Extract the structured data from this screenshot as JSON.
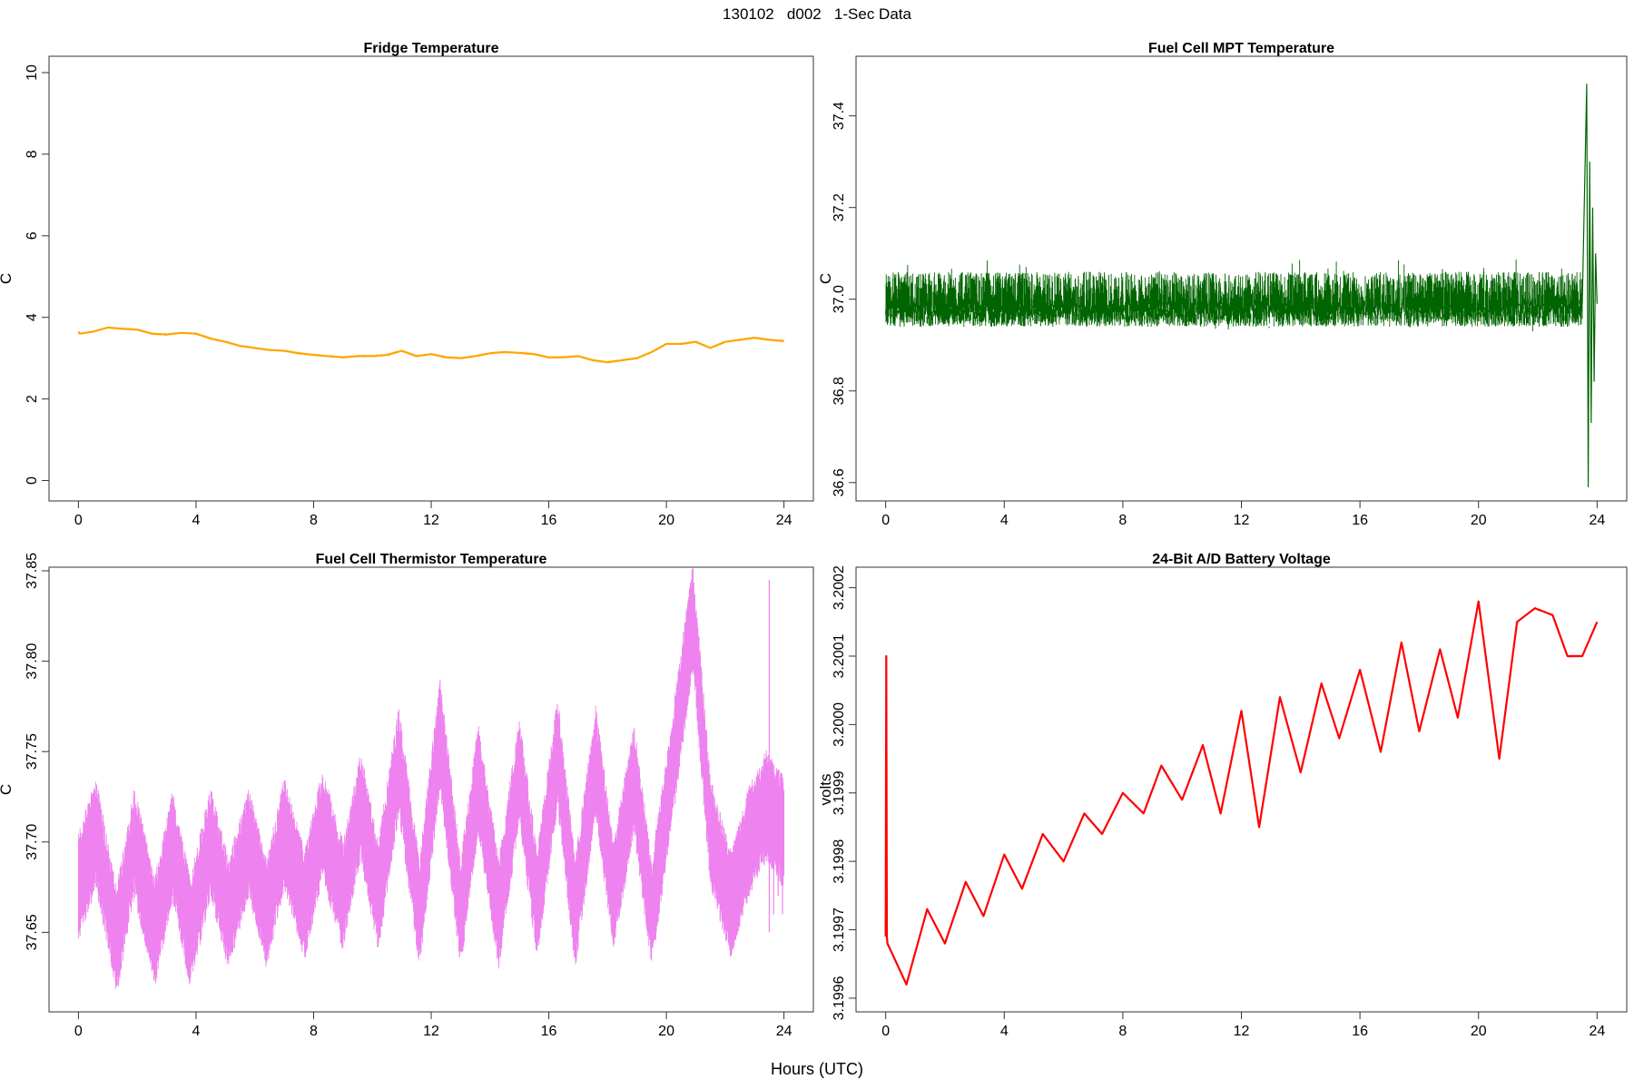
{
  "figure": {
    "title": "130102   d002   1-Sec Data",
    "xlabel": "Hours (UTC)"
  },
  "chart_data": [
    {
      "type": "line",
      "title": "Fridge Temperature",
      "ylabel": "C",
      "color": "#FFA500",
      "xlim": [
        -1,
        25
      ],
      "ylim": [
        -0.5,
        10.4
      ],
      "xticks": [
        0,
        4,
        8,
        12,
        16,
        20,
        24
      ],
      "yticks": [
        0,
        2,
        4,
        6,
        8,
        10
      ],
      "ytick_labels": [
        "0",
        "2",
        "4",
        "6",
        "8",
        "10"
      ],
      "style": "smooth",
      "x": [
        0,
        0.05,
        0.5,
        1,
        1.5,
        2,
        2.5,
        3,
        3.5,
        4,
        4.5,
        5,
        5.5,
        6,
        6.5,
        7,
        7.5,
        8,
        8.5,
        9,
        9.5,
        10,
        10.5,
        11,
        11.5,
        12,
        12.5,
        13,
        13.5,
        14,
        14.5,
        15,
        15.5,
        16,
        16.5,
        17,
        17.5,
        18,
        18.5,
        19,
        19.5,
        20,
        20.5,
        21,
        21.5,
        22,
        22.5,
        23,
        23.5,
        24
      ],
      "y": [
        3.65,
        3.6,
        3.65,
        3.75,
        3.72,
        3.7,
        3.6,
        3.58,
        3.62,
        3.6,
        3.48,
        3.4,
        3.3,
        3.25,
        3.2,
        3.18,
        3.12,
        3.08,
        3.05,
        3.02,
        3.05,
        3.05,
        3.08,
        3.18,
        3.05,
        3.1,
        3.02,
        3.0,
        3.05,
        3.12,
        3.15,
        3.13,
        3.1,
        3.02,
        3.02,
        3.05,
        2.95,
        2.9,
        2.95,
        3.0,
        3.15,
        3.35,
        3.35,
        3.4,
        3.25,
        3.4,
        3.45,
        3.5,
        3.45,
        3.42
      ]
    },
    {
      "type": "line",
      "title": "Fuel Cell MPT Temperature",
      "ylabel": "C",
      "color": "#006400",
      "xlim": [
        -1,
        25
      ],
      "ylim": [
        36.56,
        37.53
      ],
      "xticks": [
        0,
        4,
        8,
        12,
        16,
        20,
        24
      ],
      "yticks": [
        36.6,
        36.8,
        37.0,
        37.2,
        37.4
      ],
      "ytick_labels": [
        "36.6",
        "36.8",
        "37.0",
        "37.2",
        "37.4"
      ],
      "style": "noise",
      "x": [
        0,
        23.6,
        23.65,
        23.72,
        23.8,
        23.9,
        24
      ],
      "y": [
        36.99,
        36.99,
        37.47,
        36.59,
        37.3,
        36.8,
        37.05
      ],
      "band": [
        0,
        23.5,
        36.93,
        37.05
      ],
      "spikes_x": [
        23.65,
        23.7,
        23.75,
        23.8,
        23.85,
        23.9,
        23.95
      ],
      "spikes_y": [
        37.47,
        36.59,
        37.3,
        36.73,
        37.2,
        36.82,
        37.1
      ]
    },
    {
      "type": "line",
      "title": "Fuel Cell Thermistor Temperature",
      "ylabel": "C",
      "color": "#EE82EE",
      "xlim": [
        -1,
        25
      ],
      "ylim": [
        37.606,
        37.852
      ],
      "xticks": [
        0,
        4,
        8,
        12,
        16,
        20,
        24
      ],
      "yticks": [
        37.65,
        37.7,
        37.75,
        37.8,
        37.85
      ],
      "ytick_labels": [
        "37.65",
        "37.70",
        "37.75",
        "37.80",
        "37.85"
      ],
      "style": "noise",
      "x": [
        0,
        0.6,
        1.3,
        1.9,
        2.6,
        3.2,
        3.8,
        4.5,
        5.1,
        5.8,
        6.4,
        7.0,
        7.7,
        8.3,
        9.0,
        9.6,
        10.2,
        10.9,
        11.6,
        12.3,
        13.0,
        13.6,
        14.3,
        15.0,
        15.6,
        16.3,
        16.9,
        17.6,
        18.2,
        18.9,
        19.5,
        20.2,
        20.9,
        21.5,
        22.2,
        22.8,
        23.4,
        24
      ],
      "y": [
        37.675,
        37.705,
        37.645,
        37.7,
        37.65,
        37.698,
        37.65,
        37.7,
        37.66,
        37.7,
        37.66,
        37.705,
        37.665,
        37.71,
        37.67,
        37.72,
        37.67,
        37.745,
        37.66,
        37.76,
        37.66,
        37.735,
        37.66,
        37.74,
        37.665,
        37.75,
        37.66,
        37.745,
        37.67,
        37.735,
        37.66,
        37.74,
        37.825,
        37.705,
        37.665,
        37.7,
        37.72,
        37.705
      ],
      "band": [
        0,
        24,
        0.024,
        0.024
      ]
    },
    {
      "type": "line",
      "title": "24-Bit A/D Battery Voltage",
      "ylabel": "volts",
      "color": "#FF0000",
      "xlim": [
        -1,
        25
      ],
      "ylim": [
        3.19958,
        3.20023
      ],
      "xticks": [
        0,
        4,
        8,
        12,
        16,
        20,
        24
      ],
      "yticks": [
        3.1996,
        3.1997,
        3.1998,
        3.1999,
        3.2,
        3.2001,
        3.2002
      ],
      "ytick_labels": [
        "3.1996",
        "3.1997",
        "3.1998",
        "3.1999",
        "3.2000",
        "3.2001",
        "3.2002"
      ],
      "style": "smooth",
      "x": [
        0,
        0.02,
        0.04,
        0.06,
        0.7,
        1.4,
        2.0,
        2.7,
        3.3,
        4.0,
        4.6,
        5.3,
        6.0,
        6.7,
        7.3,
        8.0,
        8.7,
        9.3,
        10.0,
        10.7,
        11.3,
        12.0,
        12.6,
        13.3,
        14.0,
        14.7,
        15.3,
        16.0,
        16.7,
        17.4,
        18.0,
        18.7,
        19.3,
        20.0,
        20.7,
        21.3,
        21.9,
        22.5,
        23.0,
        23.5,
        24.0
      ],
      "y": [
        3.19969,
        3.2001,
        3.19969,
        3.19968,
        3.19962,
        3.19973,
        3.19968,
        3.19977,
        3.19972,
        3.19981,
        3.19976,
        3.19984,
        3.1998,
        3.19987,
        3.19984,
        3.1999,
        3.19987,
        3.19994,
        3.19989,
        3.19997,
        3.19987,
        3.20002,
        3.19985,
        3.20004,
        3.19993,
        3.20006,
        3.19998,
        3.20008,
        3.19996,
        3.20012,
        3.19999,
        3.20011,
        3.20001,
        3.20018,
        3.19995,
        3.20015,
        3.20017,
        3.20016,
        3.2001,
        3.2001,
        3.20015
      ]
    }
  ]
}
